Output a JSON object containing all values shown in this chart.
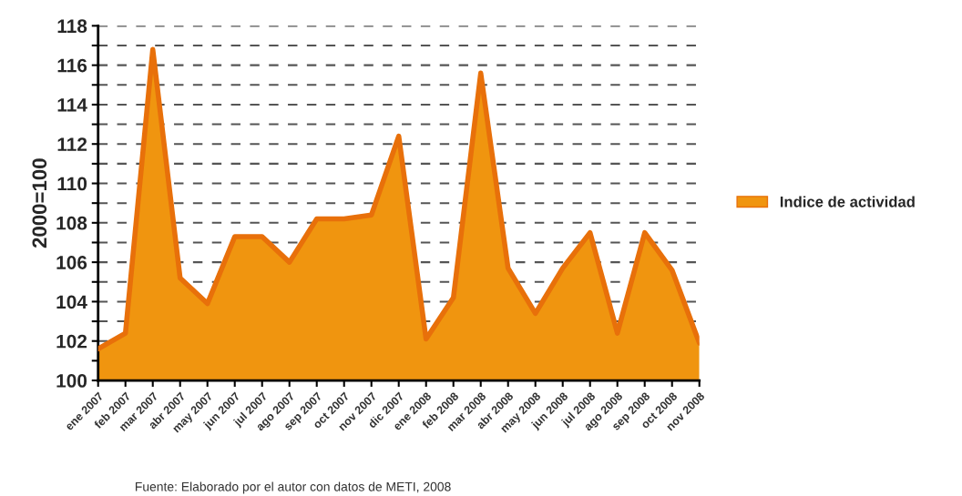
{
  "chart_data": {
    "type": "area",
    "ylabel": "2000=100",
    "categories": [
      "ene 2007",
      "feb 2007",
      "mar 2007",
      "abr 2007",
      "may 2007",
      "jun 2007",
      "jul 2007",
      "ago 2007",
      "sep 2007",
      "oct 2007",
      "nov 2007",
      "dic 2007",
      "ene 2008",
      "feb 2008",
      "mar 2008",
      "abr 2008",
      "may 2008",
      "jun 2008",
      "jul 2008",
      "ago 2008",
      "sep 2008",
      "oct 2008",
      "nov 2008"
    ],
    "series": [
      {
        "name": "Indice de actividad",
        "color": "#f0950f",
        "values": [
          101.6,
          102.4,
          116.8,
          105.2,
          103.9,
          107.3,
          107.3,
          106.0,
          108.2,
          108.2,
          108.4,
          112.4,
          102.1,
          104.2,
          115.6,
          105.7,
          103.4,
          105.7,
          107.5,
          102.4,
          107.5,
          105.6,
          101.9
        ]
      }
    ],
    "ylim": [
      100,
      118
    ],
    "yticks": [
      100,
      {
        "value": 101,
        "label": null
      },
      102,
      {
        "value": 103,
        "label": null
      },
      104,
      {
        "value": 105,
        "label": null
      },
      106,
      {
        "value": 107,
        "label": null
      },
      108,
      {
        "value": 109,
        "label": null
      },
      110,
      {
        "value": 111,
        "label": null
      },
      112,
      {
        "value": 113,
        "label": null
      },
      114,
      {
        "value": 115,
        "label": null
      },
      116,
      {
        "value": 117,
        "label": null
      },
      118
    ],
    "grid": "y",
    "legend": "right",
    "line_style": "solid",
    "annotations": [
      "Fuente: Elaborado por el autor con datos de METI, 2008"
    ]
  }
}
